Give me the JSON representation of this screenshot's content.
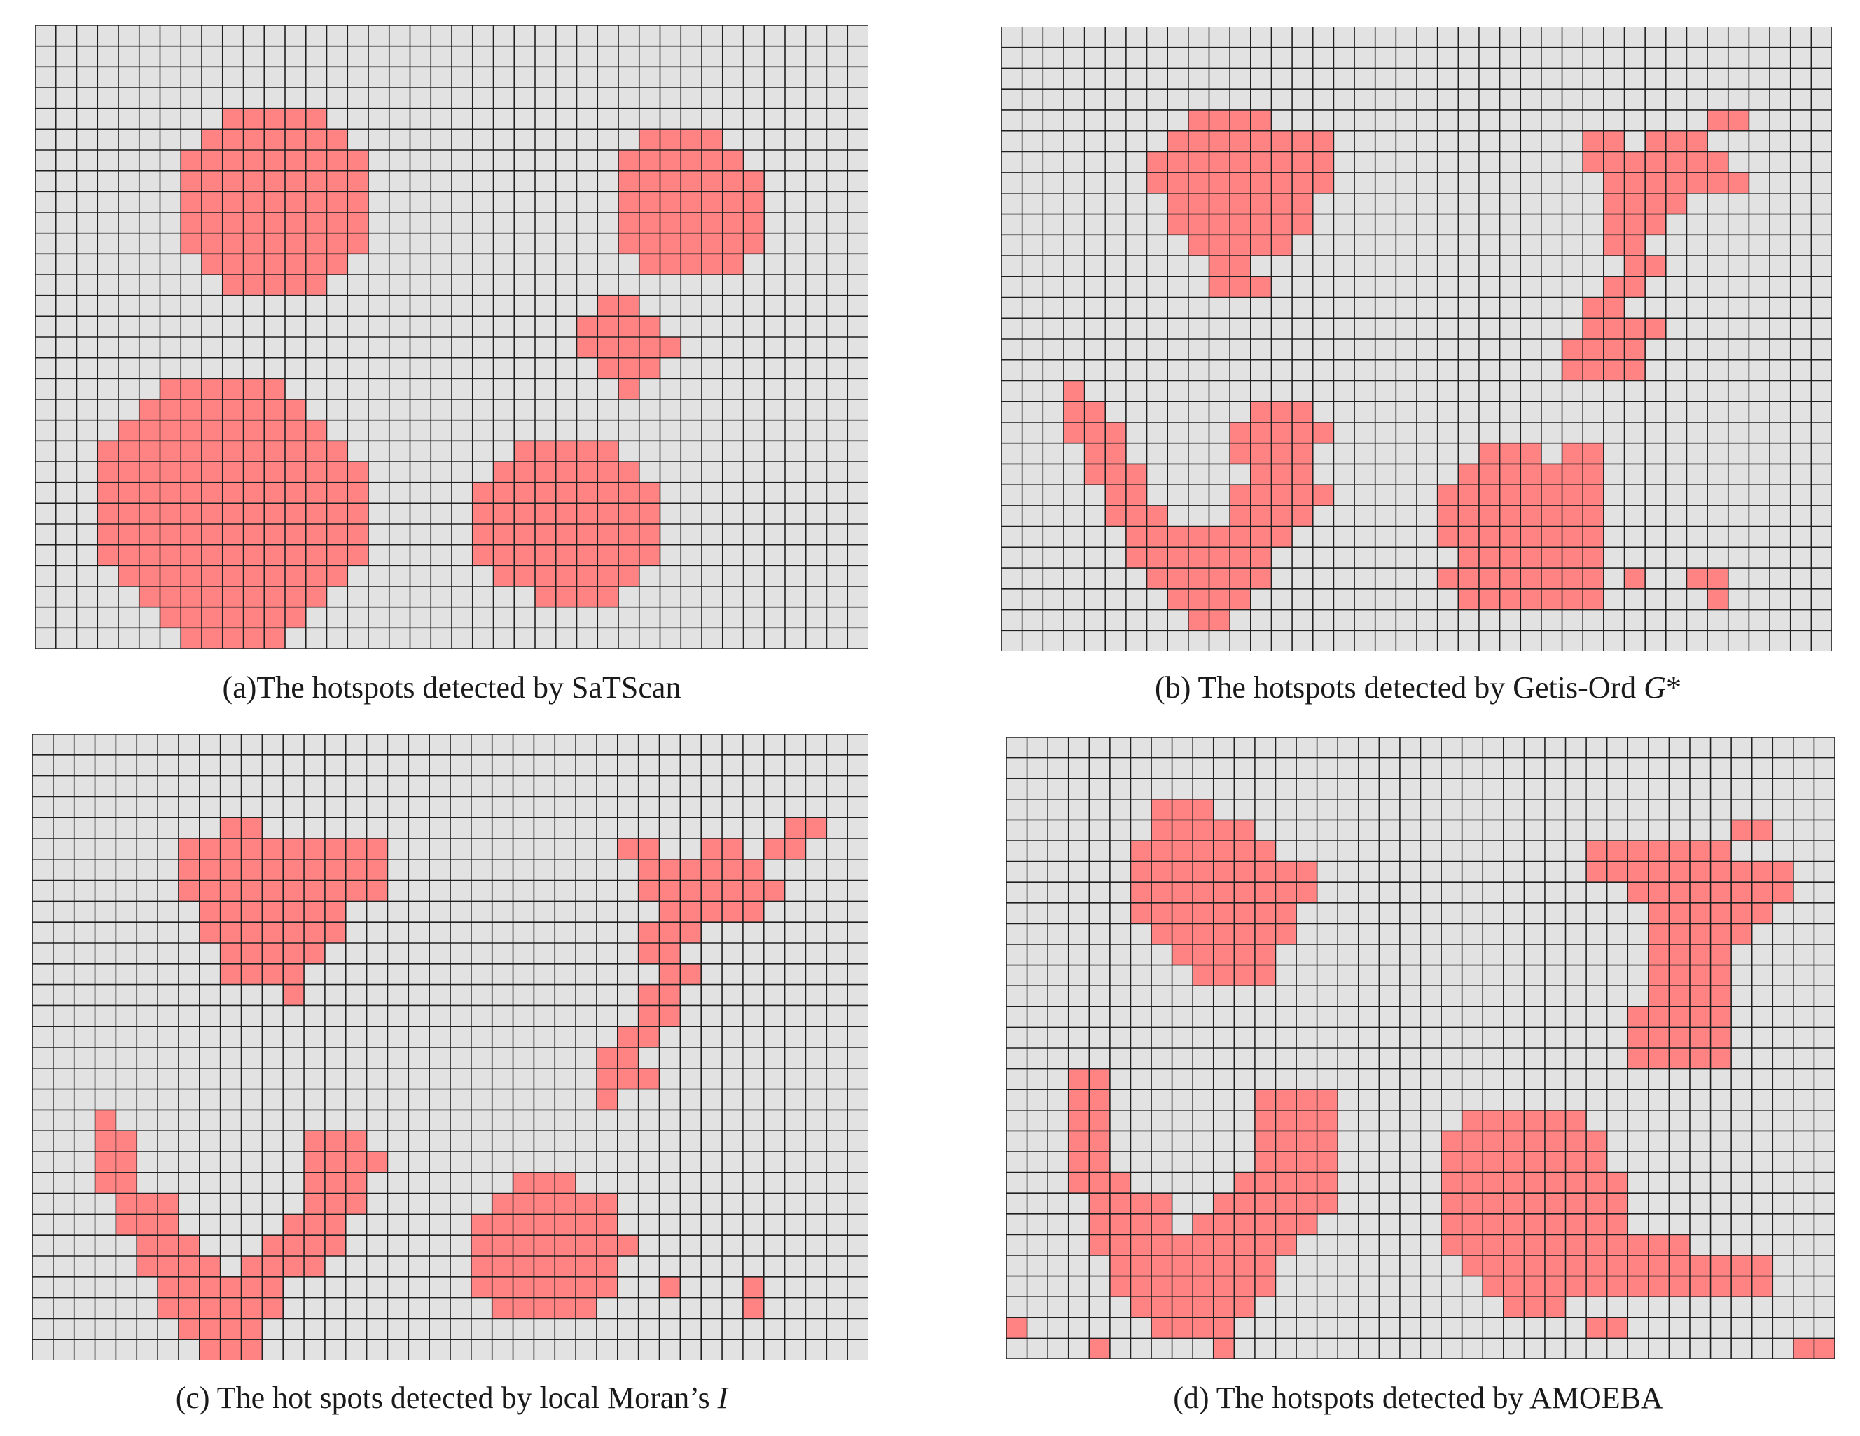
{
  "colors": {
    "grid_fill": "#e2e2e2",
    "grid_line": "#202020",
    "hotspot": "#ff8383"
  },
  "panels": [
    {
      "caption": "(a)The hotspots detected by SaTScan",
      "cols": 40,
      "rows": 30,
      "hotspot_rows": [
        [],
        [],
        [],
        [],
        [
          [
            9,
            13
          ]
        ],
        [
          [
            8,
            14
          ],
          [
            29,
            32
          ]
        ],
        [
          [
            7,
            15
          ],
          [
            28,
            33
          ]
        ],
        [
          [
            7,
            15
          ],
          [
            28,
            34
          ]
        ],
        [
          [
            7,
            15
          ],
          [
            28,
            34
          ]
        ],
        [
          [
            7,
            15
          ],
          [
            28,
            34
          ]
        ],
        [
          [
            7,
            15
          ],
          [
            28,
            34
          ]
        ],
        [
          [
            8,
            14
          ],
          [
            29,
            33
          ]
        ],
        [
          [
            9,
            13
          ]
        ],
        [
          [
            27,
            28
          ]
        ],
        [
          [
            26,
            29
          ]
        ],
        [
          [
            26,
            30
          ]
        ],
        [
          [
            27,
            29
          ]
        ],
        [
          [
            6,
            11
          ],
          [
            28,
            28
          ]
        ],
        [
          [
            5,
            12
          ]
        ],
        [
          [
            4,
            13
          ]
        ],
        [
          [
            3,
            14
          ],
          [
            23,
            27
          ]
        ],
        [
          [
            3,
            15
          ],
          [
            22,
            28
          ]
        ],
        [
          [
            3,
            15
          ],
          [
            21,
            29
          ]
        ],
        [
          [
            3,
            15
          ],
          [
            21,
            29
          ]
        ],
        [
          [
            3,
            15
          ],
          [
            21,
            29
          ]
        ],
        [
          [
            3,
            15
          ],
          [
            21,
            29
          ]
        ],
        [
          [
            4,
            14
          ],
          [
            22,
            28
          ]
        ],
        [
          [
            5,
            13
          ],
          [
            24,
            27
          ]
        ],
        [
          [
            6,
            12
          ]
        ],
        [
          [
            7,
            11
          ]
        ]
      ]
    },
    {
      "caption": "(b) The hotspots detected by Getis-Ord ",
      "caption_italic": "G",
      "caption_tail": "*",
      "cols": 40,
      "rows": 30,
      "hotspot_rows": [
        [],
        [],
        [],
        [],
        [
          [
            9,
            12
          ],
          [
            34,
            35
          ]
        ],
        [
          [
            8,
            15
          ],
          [
            28,
            29
          ],
          [
            31,
            33
          ]
        ],
        [
          [
            7,
            15
          ],
          [
            28,
            34
          ]
        ],
        [
          [
            7,
            15
          ],
          [
            29,
            35
          ]
        ],
        [
          [
            8,
            14
          ],
          [
            29,
            32
          ]
        ],
        [
          [
            8,
            14
          ],
          [
            29,
            31
          ]
        ],
        [
          [
            9,
            13
          ],
          [
            29,
            30
          ]
        ],
        [
          [
            10,
            11
          ],
          [
            30,
            31
          ]
        ],
        [
          [
            10,
            12
          ],
          [
            29,
            30
          ]
        ],
        [
          [
            28,
            29
          ]
        ],
        [
          [
            28,
            31
          ]
        ],
        [
          [
            27,
            30
          ]
        ],
        [
          [
            27,
            30
          ]
        ],
        [
          [
            3,
            3
          ]
        ],
        [
          [
            3,
            4
          ],
          [
            12,
            14
          ]
        ],
        [
          [
            3,
            5
          ],
          [
            11,
            15
          ]
        ],
        [
          [
            4,
            5
          ],
          [
            11,
            14
          ],
          [
            23,
            25
          ],
          [
            27,
            28
          ]
        ],
        [
          [
            4,
            6
          ],
          [
            12,
            14
          ],
          [
            22,
            28
          ]
        ],
        [
          [
            5,
            6
          ],
          [
            11,
            15
          ],
          [
            21,
            28
          ]
        ],
        [
          [
            5,
            7
          ],
          [
            11,
            14
          ],
          [
            21,
            28
          ]
        ],
        [
          [
            6,
            8
          ],
          [
            9,
            13
          ],
          [
            21,
            28
          ]
        ],
        [
          [
            6,
            9
          ],
          [
            10,
            12
          ],
          [
            22,
            28
          ]
        ],
        [
          [
            7,
            12
          ],
          [
            21,
            28
          ],
          [
            30,
            30
          ],
          [
            33,
            34
          ]
        ],
        [
          [
            8,
            11
          ],
          [
            22,
            28
          ],
          [
            34,
            34
          ]
        ],
        [
          [
            9,
            10
          ]
        ],
        []
      ]
    },
    {
      "caption": "(c) The hot spots detected by local Moran’s ",
      "caption_italic": "I",
      "caption_tail": "",
      "cols": 40,
      "rows": 30,
      "hotspot_rows": [
        [],
        [],
        [],
        [],
        [
          [
            9,
            10
          ],
          [
            36,
            37
          ]
        ],
        [
          [
            7,
            16
          ],
          [
            28,
            29
          ],
          [
            32,
            33
          ],
          [
            35,
            36
          ]
        ],
        [
          [
            7,
            16
          ],
          [
            29,
            31
          ],
          [
            32,
            34
          ]
        ],
        [
          [
            7,
            16
          ],
          [
            29,
            35
          ]
        ],
        [
          [
            8,
            14
          ],
          [
            30,
            34
          ]
        ],
        [
          [
            8,
            14
          ],
          [
            29,
            31
          ]
        ],
        [
          [
            9,
            13
          ],
          [
            29,
            30
          ]
        ],
        [
          [
            9,
            12
          ],
          [
            30,
            31
          ]
        ],
        [
          [
            12,
            12
          ],
          [
            29,
            30
          ]
        ],
        [
          [
            29,
            30
          ]
        ],
        [
          [
            28,
            29
          ]
        ],
        [
          [
            27,
            28
          ]
        ],
        [
          [
            27,
            29
          ]
        ],
        [
          [
            27,
            27
          ]
        ],
        [
          [
            3,
            3
          ]
        ],
        [
          [
            3,
            4
          ],
          [
            13,
            15
          ]
        ],
        [
          [
            3,
            4
          ],
          [
            13,
            16
          ]
        ],
        [
          [
            3,
            4
          ],
          [
            13,
            15
          ],
          [
            23,
            25
          ]
        ],
        [
          [
            4,
            6
          ],
          [
            13,
            15
          ],
          [
            22,
            27
          ]
        ],
        [
          [
            4,
            6
          ],
          [
            12,
            14
          ],
          [
            21,
            27
          ]
        ],
        [
          [
            5,
            7
          ],
          [
            11,
            14
          ],
          [
            21,
            28
          ]
        ],
        [
          [
            5,
            8
          ],
          [
            10,
            13
          ],
          [
            21,
            27
          ]
        ],
        [
          [
            6,
            11
          ],
          [
            21,
            27
          ],
          [
            30,
            30
          ],
          [
            34,
            34
          ]
        ],
        [
          [
            6,
            11
          ],
          [
            22,
            26
          ],
          [
            34,
            34
          ]
        ],
        [
          [
            7,
            10
          ]
        ],
        [
          [
            8,
            10
          ]
        ]
      ]
    },
    {
      "caption": "(d) The hotspots detected by AMOEBA",
      "cols": 40,
      "rows": 30,
      "hotspot_rows": [
        [],
        [],
        [],
        [
          [
            7,
            9
          ]
        ],
        [
          [
            7,
            11
          ],
          [
            35,
            36
          ]
        ],
        [
          [
            6,
            12
          ],
          [
            28,
            34
          ]
        ],
        [
          [
            6,
            14
          ],
          [
            28,
            37
          ]
        ],
        [
          [
            6,
            14
          ],
          [
            30,
            37
          ]
        ],
        [
          [
            6,
            13
          ],
          [
            31,
            36
          ]
        ],
        [
          [
            7,
            13
          ],
          [
            31,
            35
          ]
        ],
        [
          [
            8,
            12
          ],
          [
            31,
            34
          ]
        ],
        [
          [
            9,
            12
          ],
          [
            31,
            34
          ]
        ],
        [
          [
            31,
            34
          ]
        ],
        [
          [
            30,
            34
          ]
        ],
        [
          [
            30,
            34
          ]
        ],
        [
          [
            30,
            34
          ]
        ],
        [
          [
            3,
            4
          ]
        ],
        [
          [
            3,
            4
          ],
          [
            12,
            15
          ]
        ],
        [
          [
            3,
            4
          ],
          [
            12,
            15
          ],
          [
            22,
            27
          ]
        ],
        [
          [
            3,
            4
          ],
          [
            12,
            15
          ],
          [
            21,
            28
          ]
        ],
        [
          [
            3,
            4
          ],
          [
            12,
            15
          ],
          [
            21,
            28
          ]
        ],
        [
          [
            3,
            5
          ],
          [
            11,
            15
          ],
          [
            21,
            29
          ]
        ],
        [
          [
            4,
            7
          ],
          [
            10,
            15
          ],
          [
            21,
            29
          ]
        ],
        [
          [
            4,
            7
          ],
          [
            9,
            14
          ],
          [
            21,
            29
          ]
        ],
        [
          [
            4,
            13
          ],
          [
            21,
            32
          ]
        ],
        [
          [
            5,
            12
          ],
          [
            22,
            36
          ]
        ],
        [
          [
            5,
            12
          ],
          [
            23,
            34
          ],
          [
            35,
            36
          ]
        ],
        [
          [
            6,
            11
          ],
          [
            24,
            26
          ]
        ],
        [
          [
            0,
            0
          ],
          [
            7,
            10
          ],
          [
            28,
            29
          ]
        ],
        [
          [
            4,
            4
          ],
          [
            10,
            10
          ],
          [
            38,
            39
          ]
        ]
      ]
    }
  ]
}
